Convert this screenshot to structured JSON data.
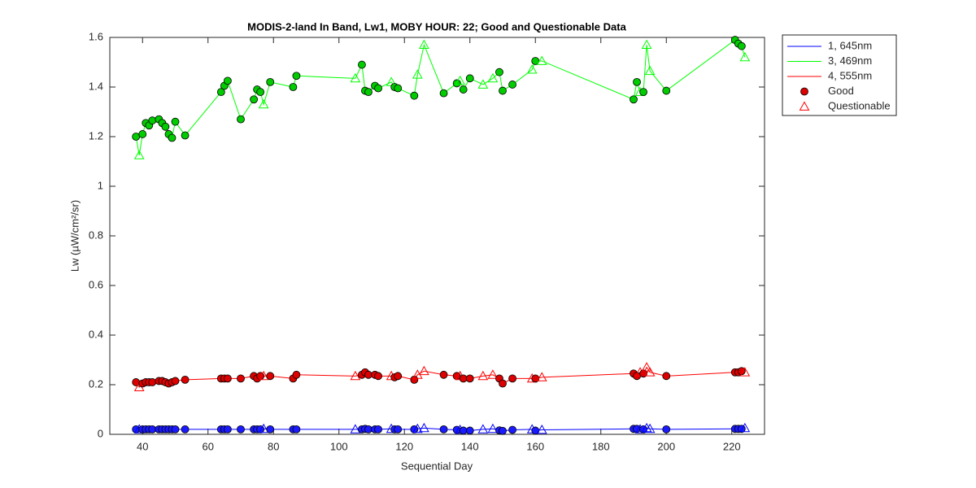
{
  "chart_data": {
    "type": "line",
    "title": "MODIS-2-land In Band,  Lw1, MOBY HOUR: 22;  Good and Questionable Data",
    "x_label": "Sequential Day",
    "y_label": "Lw (µW/cm²/sr)",
    "xlim": [
      30,
      230
    ],
    "xticks": [
      40,
      60,
      80,
      100,
      120,
      140,
      160,
      180,
      200,
      220
    ],
    "ylim": [
      0,
      1.6
    ],
    "yticks": [
      0,
      0.2,
      0.4,
      0.6,
      0.8,
      1,
      1.2,
      1.4,
      1.6
    ],
    "grid": false,
    "legend": "outside-right",
    "x": [
      38,
      39,
      40,
      41,
      42,
      43,
      45,
      46,
      47,
      48,
      49,
      50,
      53,
      64,
      65,
      66,
      70,
      74,
      75,
      76,
      77,
      79,
      86,
      87,
      105,
      107,
      108,
      109,
      111,
      112,
      116,
      117,
      118,
      123,
      124,
      126,
      132,
      136,
      137,
      138,
      140,
      144,
      147,
      149,
      150,
      153,
      159,
      160,
      162,
      190,
      191,
      192,
      193,
      194,
      195,
      200,
      221,
      222,
      223,
      224
    ],
    "quality": [
      0,
      1,
      0,
      0,
      0,
      0,
      0,
      0,
      0,
      0,
      0,
      0,
      0,
      0,
      0,
      0,
      0,
      0,
      0,
      0,
      1,
      0,
      0,
      0,
      1,
      0,
      0,
      0,
      0,
      0,
      1,
      0,
      0,
      0,
      1,
      1,
      0,
      0,
      1,
      0,
      0,
      1,
      1,
      0,
      0,
      0,
      1,
      0,
      1,
      0,
      0,
      1,
      0,
      1,
      1,
      0,
      0,
      0,
      0,
      1
    ],
    "markers": [
      {
        "name": "Good",
        "symbol": "circle"
      },
      {
        "name": "Questionable",
        "symbol": "triangle"
      }
    ],
    "series": [
      {
        "name": "1, 645nm",
        "color": "#0000ff",
        "fill": "#1a1aff",
        "values": [
          0.02,
          0.02,
          0.02,
          0.02,
          0.02,
          0.02,
          0.02,
          0.02,
          0.02,
          0.02,
          0.02,
          0.02,
          0.02,
          0.02,
          0.02,
          0.02,
          0.02,
          0.02,
          0.02,
          0.02,
          0.022,
          0.02,
          0.02,
          0.02,
          0.02,
          0.02,
          0.022,
          0.02,
          0.02,
          0.02,
          0.022,
          0.02,
          0.02,
          0.02,
          0.022,
          0.025,
          0.02,
          0.018,
          0.018,
          0.015,
          0.015,
          0.02,
          0.022,
          0.016,
          0.014,
          0.018,
          0.02,
          0.015,
          0.018,
          0.022,
          0.022,
          0.02,
          0.02,
          0.025,
          0.022,
          0.02,
          0.022,
          0.022,
          0.022,
          0.025
        ]
      },
      {
        "name": "3, 469nm",
        "color": "#00ff00",
        "fill": "#00cc00",
        "values": [
          1.2,
          1.125,
          1.21,
          1.255,
          1.245,
          1.265,
          1.27,
          1.255,
          1.24,
          1.21,
          1.195,
          1.26,
          1.205,
          1.38,
          1.405,
          1.425,
          1.27,
          1.35,
          1.39,
          1.38,
          1.33,
          1.42,
          1.4,
          1.445,
          1.435,
          1.49,
          1.385,
          1.38,
          1.405,
          1.395,
          1.42,
          1.4,
          1.395,
          1.365,
          1.45,
          1.57,
          1.375,
          1.415,
          1.425,
          1.39,
          1.435,
          1.41,
          1.435,
          1.46,
          1.385,
          1.41,
          1.47,
          1.505,
          1.505,
          1.35,
          1.42,
          1.38,
          1.38,
          1.57,
          1.465,
          1.385,
          1.59,
          1.575,
          1.565,
          1.52
        ]
      },
      {
        "name": "4, 555nm",
        "color": "#ff0000",
        "fill": "#dd0000",
        "values": [
          0.21,
          0.19,
          0.205,
          0.21,
          0.21,
          0.21,
          0.215,
          0.215,
          0.21,
          0.205,
          0.21,
          0.215,
          0.22,
          0.225,
          0.225,
          0.225,
          0.225,
          0.235,
          0.225,
          0.235,
          0.235,
          0.235,
          0.225,
          0.24,
          0.235,
          0.24,
          0.25,
          0.24,
          0.24,
          0.235,
          0.235,
          0.23,
          0.235,
          0.22,
          0.24,
          0.255,
          0.24,
          0.235,
          0.235,
          0.225,
          0.225,
          0.235,
          0.24,
          0.225,
          0.205,
          0.225,
          0.225,
          0.225,
          0.23,
          0.245,
          0.235,
          0.25,
          0.245,
          0.27,
          0.25,
          0.235,
          0.25,
          0.25,
          0.255,
          0.25
        ]
      }
    ]
  }
}
